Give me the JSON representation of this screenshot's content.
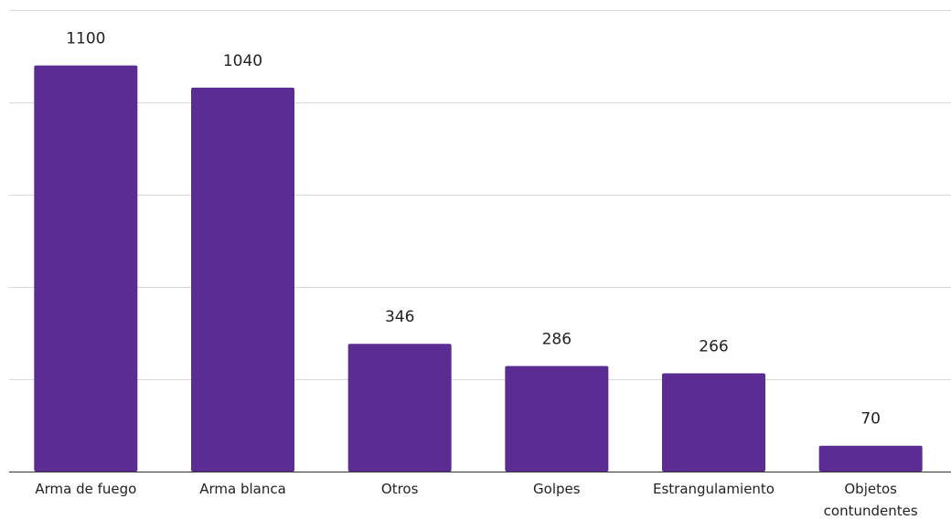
{
  "chart_data": {
    "type": "bar",
    "categories": [
      [
        "Arma de fuego"
      ],
      [
        "Arma blanca"
      ],
      [
        "Otros"
      ],
      [
        "Golpes"
      ],
      [
        "Estrangulamiento"
      ],
      [
        "Objetos",
        "contundentes"
      ]
    ],
    "values": [
      1100,
      1040,
      346,
      286,
      266,
      70
    ],
    "data_labels": [
      "1100",
      "1040",
      "346",
      "286",
      "266",
      "70"
    ],
    "title": "",
    "xlabel": "",
    "ylabel": "",
    "ylim": [
      0,
      1250
    ],
    "y_gridlines": [
      0,
      250,
      500,
      750,
      1000,
      1250
    ],
    "y_tick_labels_shown": false,
    "grid": true,
    "legend": "none",
    "bar_color": "#5b2c91"
  }
}
